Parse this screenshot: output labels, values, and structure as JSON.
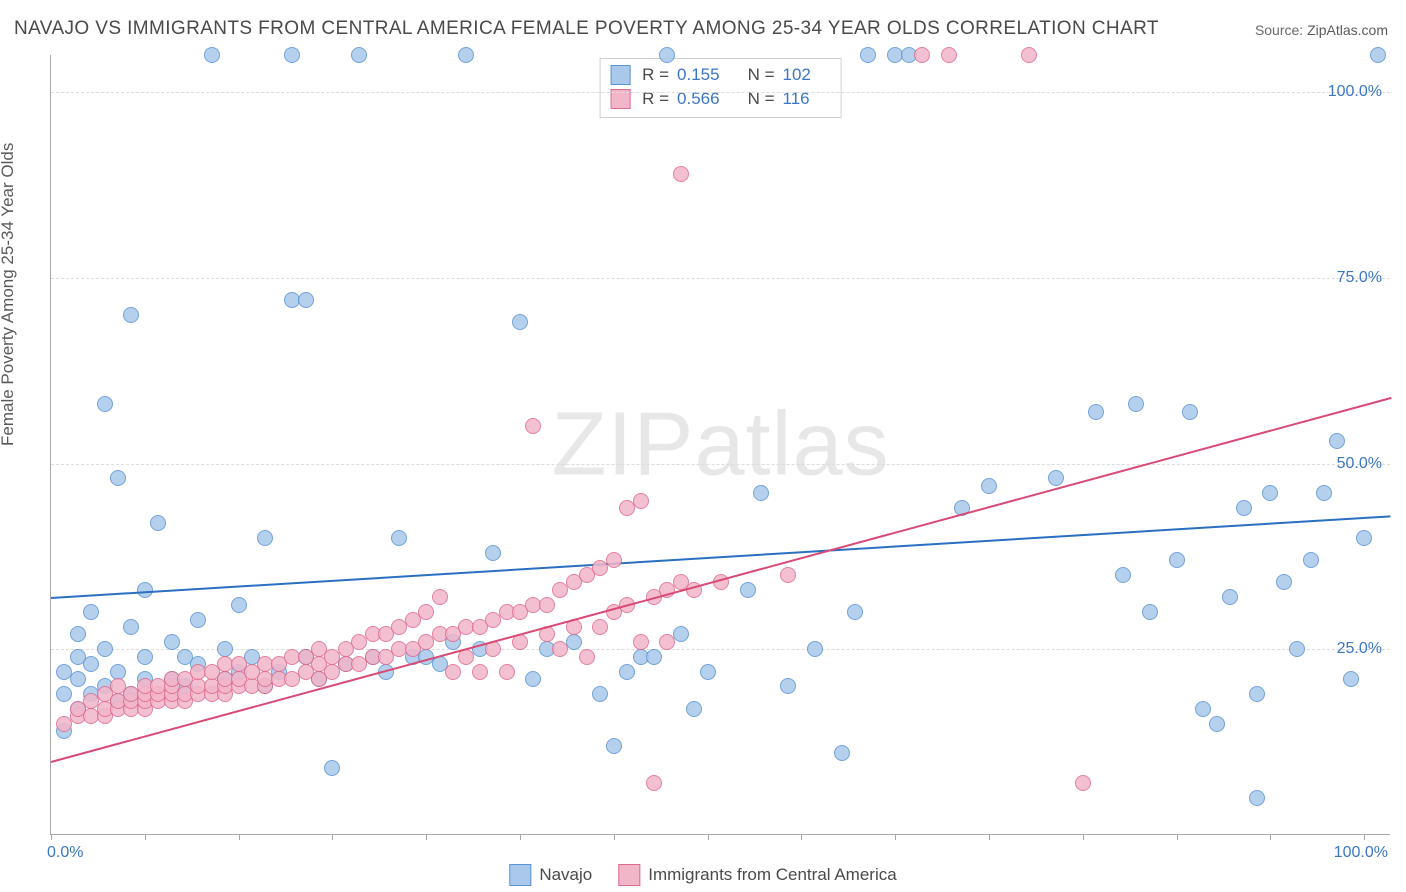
{
  "title": "NAVAJO VS IMMIGRANTS FROM CENTRAL AMERICA FEMALE POVERTY AMONG 25-34 YEAR OLDS CORRELATION CHART",
  "source_label": "Source:",
  "source_value": "ZipAtlas.com",
  "ylabel": "Female Poverty Among 25-34 Year Olds",
  "watermark": "ZIPatlas",
  "chart": {
    "type": "scatter",
    "xlim": [
      0,
      100
    ],
    "ylim": [
      0,
      105
    ],
    "x_tick_positions": [
      0,
      7,
      14,
      21,
      28,
      35,
      42,
      49,
      56,
      63,
      70,
      77,
      84,
      91,
      98
    ],
    "x_tick_labels": {
      "0": "0.0%",
      "100": "100.0%"
    },
    "y_gridlines": [
      25,
      50,
      75,
      100
    ],
    "y_tick_labels": {
      "25": "25.0%",
      "50": "50.0%",
      "75": "75.0%",
      "100": "100.0%"
    },
    "background_color": "#ffffff",
    "grid_color": "#dcdcdc",
    "axis_color": "#a8a8a8",
    "marker_radius": 8,
    "marker_border_width": 1.5,
    "marker_fill_opacity": 0.3,
    "series": [
      {
        "name": "Navajo",
        "color_border": "#5a93d4",
        "color_fill": "#a9c8ea",
        "R": "0.155",
        "N": "102",
        "trend": {
          "y_at_x0": 32,
          "y_at_x100": 43,
          "color": "#2b6fc0",
          "width": 2
        },
        "points": [
          [
            1,
            14
          ],
          [
            1,
            19
          ],
          [
            1,
            22
          ],
          [
            2,
            17
          ],
          [
            2,
            21
          ],
          [
            2,
            24
          ],
          [
            2,
            27
          ],
          [
            3,
            19
          ],
          [
            3,
            23
          ],
          [
            3,
            30
          ],
          [
            4,
            20
          ],
          [
            4,
            25
          ],
          [
            4,
            58
          ],
          [
            5,
            18
          ],
          [
            5,
            22
          ],
          [
            5,
            48
          ],
          [
            6,
            19
          ],
          [
            6,
            28
          ],
          [
            6,
            70
          ],
          [
            7,
            21
          ],
          [
            7,
            24
          ],
          [
            7,
            33
          ],
          [
            8,
            42
          ],
          [
            9,
            21
          ],
          [
            9,
            26
          ],
          [
            10,
            20
          ],
          [
            10,
            24
          ],
          [
            11,
            23
          ],
          [
            11,
            29
          ],
          [
            12,
            105
          ],
          [
            13,
            21
          ],
          [
            13,
            25
          ],
          [
            14,
            22
          ],
          [
            14,
            31
          ],
          [
            15,
            24
          ],
          [
            16,
            20
          ],
          [
            16,
            40
          ],
          [
            17,
            22
          ],
          [
            18,
            105
          ],
          [
            18,
            72
          ],
          [
            19,
            24
          ],
          [
            19,
            72
          ],
          [
            20,
            21
          ],
          [
            21,
            9
          ],
          [
            22,
            23
          ],
          [
            23,
            105
          ],
          [
            24,
            24
          ],
          [
            25,
            22
          ],
          [
            26,
            40
          ],
          [
            27,
            24
          ],
          [
            28,
            24
          ],
          [
            29,
            23
          ],
          [
            30,
            26
          ],
          [
            31,
            105
          ],
          [
            32,
            25
          ],
          [
            33,
            38
          ],
          [
            35,
            69
          ],
          [
            36,
            21
          ],
          [
            37,
            25
          ],
          [
            39,
            26
          ],
          [
            41,
            19
          ],
          [
            42,
            12
          ],
          [
            43,
            22
          ],
          [
            44,
            24
          ],
          [
            45,
            24
          ],
          [
            46,
            105
          ],
          [
            47,
            27
          ],
          [
            48,
            17
          ],
          [
            49,
            22
          ],
          [
            52,
            33
          ],
          [
            53,
            46
          ],
          [
            55,
            20
          ],
          [
            57,
            25
          ],
          [
            59,
            11
          ],
          [
            60,
            30
          ],
          [
            61,
            105
          ],
          [
            63,
            105
          ],
          [
            64,
            105
          ],
          [
            68,
            44
          ],
          [
            70,
            47
          ],
          [
            75,
            48
          ],
          [
            78,
            57
          ],
          [
            80,
            35
          ],
          [
            81,
            58
          ],
          [
            82,
            30
          ],
          [
            84,
            37
          ],
          [
            85,
            57
          ],
          [
            87,
            15
          ],
          [
            88,
            32
          ],
          [
            89,
            44
          ],
          [
            90,
            19
          ],
          [
            91,
            46
          ],
          [
            92,
            34
          ],
          [
            93,
            25
          ],
          [
            94,
            37
          ],
          [
            95,
            46
          ],
          [
            96,
            53
          ],
          [
            97,
            21
          ],
          [
            98,
            40
          ],
          [
            99,
            105
          ],
          [
            90,
            5
          ],
          [
            86,
            17
          ]
        ]
      },
      {
        "name": "Immigrants from Central America",
        "color_border": "#e06a8d",
        "color_fill": "#f2b6c9",
        "R": "0.566",
        "N": "116",
        "trend": {
          "y_at_x0": 10,
          "y_at_x100": 59,
          "color": "#d94a75",
          "width": 2
        },
        "points": [
          [
            1,
            15
          ],
          [
            2,
            16
          ],
          [
            2,
            17
          ],
          [
            3,
            16
          ],
          [
            3,
            18
          ],
          [
            4,
            16
          ],
          [
            4,
            17
          ],
          [
            4,
            19
          ],
          [
            5,
            17
          ],
          [
            5,
            18
          ],
          [
            5,
            20
          ],
          [
            6,
            17
          ],
          [
            6,
            18
          ],
          [
            6,
            19
          ],
          [
            7,
            17
          ],
          [
            7,
            18
          ],
          [
            7,
            19
          ],
          [
            7,
            20
          ],
          [
            8,
            18
          ],
          [
            8,
            19
          ],
          [
            8,
            20
          ],
          [
            9,
            18
          ],
          [
            9,
            19
          ],
          [
            9,
            20
          ],
          [
            9,
            21
          ],
          [
            10,
            18
          ],
          [
            10,
            19
          ],
          [
            10,
            21
          ],
          [
            11,
            19
          ],
          [
            11,
            20
          ],
          [
            11,
            22
          ],
          [
            12,
            19
          ],
          [
            12,
            20
          ],
          [
            12,
            22
          ],
          [
            13,
            19
          ],
          [
            13,
            20
          ],
          [
            13,
            21
          ],
          [
            13,
            23
          ],
          [
            14,
            20
          ],
          [
            14,
            21
          ],
          [
            14,
            23
          ],
          [
            15,
            20
          ],
          [
            15,
            22
          ],
          [
            16,
            20
          ],
          [
            16,
            21
          ],
          [
            16,
            23
          ],
          [
            17,
            21
          ],
          [
            17,
            23
          ],
          [
            18,
            21
          ],
          [
            18,
            24
          ],
          [
            19,
            22
          ],
          [
            19,
            24
          ],
          [
            20,
            21
          ],
          [
            20,
            23
          ],
          [
            20,
            25
          ],
          [
            21,
            22
          ],
          [
            21,
            24
          ],
          [
            22,
            23
          ],
          [
            22,
            25
          ],
          [
            23,
            23
          ],
          [
            23,
            26
          ],
          [
            24,
            24
          ],
          [
            24,
            27
          ],
          [
            25,
            24
          ],
          [
            25,
            27
          ],
          [
            26,
            25
          ],
          [
            26,
            28
          ],
          [
            27,
            25
          ],
          [
            27,
            29
          ],
          [
            28,
            26
          ],
          [
            28,
            30
          ],
          [
            29,
            27
          ],
          [
            29,
            32
          ],
          [
            30,
            27
          ],
          [
            30,
            22
          ],
          [
            31,
            28
          ],
          [
            31,
            24
          ],
          [
            32,
            28
          ],
          [
            32,
            22
          ],
          [
            33,
            29
          ],
          [
            33,
            25
          ],
          [
            34,
            30
          ],
          [
            34,
            22
          ],
          [
            35,
            30
          ],
          [
            35,
            26
          ],
          [
            36,
            31
          ],
          [
            36,
            55
          ],
          [
            37,
            31
          ],
          [
            37,
            27
          ],
          [
            38,
            33
          ],
          [
            38,
            25
          ],
          [
            39,
            34
          ],
          [
            39,
            28
          ],
          [
            40,
            35
          ],
          [
            40,
            24
          ],
          [
            41,
            36
          ],
          [
            41,
            28
          ],
          [
            42,
            37
          ],
          [
            42,
            30
          ],
          [
            43,
            44
          ],
          [
            43,
            31
          ],
          [
            44,
            45
          ],
          [
            44,
            26
          ],
          [
            45,
            32
          ],
          [
            45,
            7
          ],
          [
            46,
            33
          ],
          [
            46,
            26
          ],
          [
            47,
            34
          ],
          [
            47,
            89
          ],
          [
            48,
            33
          ],
          [
            50,
            34
          ],
          [
            65,
            105
          ],
          [
            67,
            105
          ],
          [
            73,
            105
          ],
          [
            77,
            7
          ],
          [
            55,
            35
          ]
        ]
      }
    ]
  },
  "stats_labels": {
    "R": "R =",
    "N": "N ="
  },
  "legend": {
    "series1": "Navajo",
    "series2": "Immigrants from Central America"
  }
}
